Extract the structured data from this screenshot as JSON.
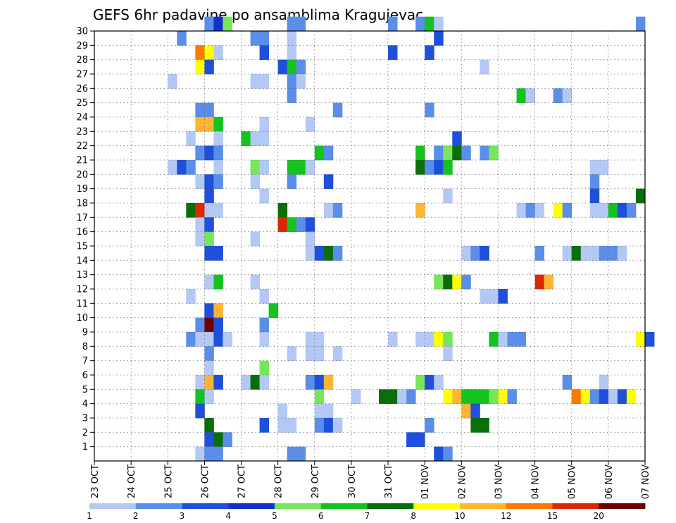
{
  "chart_data": {
    "type": "heatmap",
    "title": "GEFS 6hr padavine po ansamblima Kragujevac",
    "xlabel": "",
    "ylabel": "",
    "x_ticks": [
      "23 OCT",
      "24 OCT",
      "25 OCT",
      "26 OCT",
      "27 OCT",
      "28 OCT",
      "29 OCT",
      "30 OCT",
      "31 OCT",
      "01 NOV",
      "02 NOV",
      "03 NOV",
      "04 NOV",
      "05 NOV",
      "06 NOV",
      "07 NOV"
    ],
    "y_ticks": [
      "1",
      "2",
      "3",
      "4",
      "5",
      "6",
      "7",
      "8",
      "9",
      "10",
      "11",
      "12",
      "13",
      "14",
      "15",
      "16",
      "17",
      "18",
      "19",
      "20",
      "21",
      "22",
      "23",
      "24",
      "25",
      "26",
      "27",
      "28",
      "29",
      "30"
    ],
    "x_range_steps": [
      0,
      60
    ],
    "y_range": [
      0,
      30
    ],
    "grid": true,
    "legend": {
      "placement": "bottom",
      "labels": [
        "1",
        "2",
        "3",
        "4",
        "5",
        "6",
        "7",
        "8",
        "10",
        "12",
        "15",
        "20"
      ],
      "colors": [
        "#b4c8f5",
        "#5a8ee8",
        "#1e50dc",
        "#1432c8",
        "#78e65a",
        "#14c31e",
        "#0a6e0a",
        "#ffff00",
        "#ffb432",
        "#ff7800",
        "#dc2800",
        "#6e0000"
      ]
    },
    "cells_note": "each cell: [time step index (6h steps from 23 OCT 00z), member row 1-30, color class 0-11]",
    "cells": [
      [
        12,
        30,
        1
      ],
      [
        13,
        30,
        3
      ],
      [
        14,
        30,
        4
      ],
      [
        21,
        30,
        1
      ],
      [
        22,
        30,
        1
      ],
      [
        32,
        30,
        1
      ],
      [
        35,
        30,
        1
      ],
      [
        36,
        30,
        5
      ],
      [
        37,
        30,
        0
      ],
      [
        59,
        30,
        1
      ],
      [
        9,
        29,
        1
      ],
      [
        17,
        29,
        1
      ],
      [
        18,
        29,
        1
      ],
      [
        21,
        29,
        0
      ],
      [
        37,
        29,
        2
      ],
      [
        11,
        28,
        9
      ],
      [
        12,
        28,
        7
      ],
      [
        13,
        28,
        0
      ],
      [
        18,
        28,
        2
      ],
      [
        21,
        28,
        0
      ],
      [
        32,
        28,
        2
      ],
      [
        36,
        28,
        2
      ],
      [
        11,
        27,
        7
      ],
      [
        12,
        27,
        2
      ],
      [
        20,
        27,
        2
      ],
      [
        21,
        27,
        5
      ],
      [
        22,
        27,
        1
      ],
      [
        42,
        27,
        0
      ],
      [
        8,
        26,
        0
      ],
      [
        17,
        26,
        0
      ],
      [
        18,
        26,
        0
      ],
      [
        21,
        26,
        1
      ],
      [
        22,
        26,
        0
      ],
      [
        21,
        25,
        1
      ],
      [
        46,
        25,
        5
      ],
      [
        47,
        25,
        0
      ],
      [
        50,
        25,
        1
      ],
      [
        51,
        25,
        0
      ],
      [
        11,
        24,
        1
      ],
      [
        12,
        24,
        1
      ],
      [
        26,
        24,
        1
      ],
      [
        36,
        24,
        1
      ],
      [
        11,
        23,
        8
      ],
      [
        12,
        23,
        8
      ],
      [
        13,
        23,
        5
      ],
      [
        18,
        23,
        0
      ],
      [
        23,
        23,
        0
      ],
      [
        10,
        22,
        0
      ],
      [
        13,
        22,
        0
      ],
      [
        16,
        22,
        5
      ],
      [
        17,
        22,
        0
      ],
      [
        18,
        22,
        0
      ],
      [
        39,
        22,
        2
      ],
      [
        11,
        21,
        1
      ],
      [
        12,
        21,
        2
      ],
      [
        13,
        21,
        1
      ],
      [
        24,
        21,
        5
      ],
      [
        25,
        21,
        1
      ],
      [
        35,
        21,
        5
      ],
      [
        37,
        21,
        1
      ],
      [
        38,
        21,
        4
      ],
      [
        39,
        21,
        6
      ],
      [
        40,
        21,
        1
      ],
      [
        42,
        21,
        1
      ],
      [
        43,
        21,
        4
      ],
      [
        8,
        20,
        0
      ],
      [
        9,
        20,
        2
      ],
      [
        10,
        20,
        1
      ],
      [
        13,
        20,
        0
      ],
      [
        17,
        20,
        4
      ],
      [
        18,
        20,
        0
      ],
      [
        21,
        20,
        5
      ],
      [
        22,
        20,
        5
      ],
      [
        23,
        20,
        0
      ],
      [
        35,
        20,
        6
      ],
      [
        36,
        20,
        1
      ],
      [
        37,
        20,
        2
      ],
      [
        38,
        20,
        5
      ],
      [
        54,
        20,
        0
      ],
      [
        55,
        20,
        0
      ],
      [
        11,
        19,
        0
      ],
      [
        12,
        19,
        2
      ],
      [
        13,
        19,
        1
      ],
      [
        17,
        19,
        0
      ],
      [
        21,
        19,
        1
      ],
      [
        25,
        19,
        2
      ],
      [
        54,
        19,
        1
      ],
      [
        12,
        18,
        2
      ],
      [
        18,
        18,
        0
      ],
      [
        38,
        18,
        0
      ],
      [
        54,
        18,
        2
      ],
      [
        59,
        18,
        6
      ],
      [
        10,
        17,
        6
      ],
      [
        11,
        17,
        10
      ],
      [
        12,
        17,
        0
      ],
      [
        13,
        17,
        0
      ],
      [
        20,
        17,
        6
      ],
      [
        25,
        17,
        0
      ],
      [
        26,
        17,
        1
      ],
      [
        35,
        17,
        8
      ],
      [
        46,
        17,
        0
      ],
      [
        47,
        17,
        1
      ],
      [
        48,
        17,
        0
      ],
      [
        50,
        17,
        7
      ],
      [
        51,
        17,
        1
      ],
      [
        54,
        17,
        0
      ],
      [
        55,
        17,
        0
      ],
      [
        56,
        17,
        5
      ],
      [
        57,
        17,
        2
      ],
      [
        58,
        17,
        1
      ],
      [
        11,
        16,
        0
      ],
      [
        12,
        16,
        2
      ],
      [
        20,
        16,
        10
      ],
      [
        21,
        16,
        5
      ],
      [
        22,
        16,
        1
      ],
      [
        23,
        16,
        2
      ],
      [
        11,
        15,
        0
      ],
      [
        12,
        15,
        4
      ],
      [
        17,
        15,
        0
      ],
      [
        23,
        15,
        0
      ],
      [
        12,
        14,
        2
      ],
      [
        13,
        14,
        2
      ],
      [
        23,
        14,
        0
      ],
      [
        24,
        14,
        2
      ],
      [
        25,
        14,
        6
      ],
      [
        26,
        14,
        1
      ],
      [
        40,
        14,
        0
      ],
      [
        41,
        14,
        1
      ],
      [
        42,
        14,
        2
      ],
      [
        48,
        14,
        1
      ],
      [
        51,
        14,
        0
      ],
      [
        52,
        14,
        6
      ],
      [
        53,
        14,
        0
      ],
      [
        54,
        14,
        0
      ],
      [
        55,
        14,
        1
      ],
      [
        56,
        14,
        1
      ],
      [
        57,
        14,
        0
      ],
      [
        12,
        12,
        0
      ],
      [
        13,
        12,
        5
      ],
      [
        17,
        12,
        0
      ],
      [
        37,
        12,
        4
      ],
      [
        38,
        12,
        6
      ],
      [
        39,
        12,
        7
      ],
      [
        40,
        12,
        1
      ],
      [
        48,
        12,
        10
      ],
      [
        49,
        12,
        8
      ],
      [
        10,
        11,
        0
      ],
      [
        18,
        11,
        0
      ],
      [
        42,
        11,
        0
      ],
      [
        43,
        11,
        0
      ],
      [
        44,
        11,
        2
      ],
      [
        12,
        10,
        2
      ],
      [
        13,
        10,
        8
      ],
      [
        19,
        10,
        5
      ],
      [
        11,
        9,
        1
      ],
      [
        12,
        9,
        11
      ],
      [
        13,
        9,
        2
      ],
      [
        18,
        9,
        1
      ],
      [
        10,
        8,
        1
      ],
      [
        11,
        8,
        0
      ],
      [
        12,
        8,
        0
      ],
      [
        13,
        8,
        2
      ],
      [
        14,
        8,
        0
      ],
      [
        18,
        8,
        0
      ],
      [
        23,
        8,
        0
      ],
      [
        24,
        8,
        0
      ],
      [
        32,
        8,
        0
      ],
      [
        35,
        8,
        0
      ],
      [
        36,
        8,
        0
      ],
      [
        37,
        8,
        7
      ],
      [
        38,
        8,
        4
      ],
      [
        43,
        8,
        5
      ],
      [
        44,
        8,
        0
      ],
      [
        45,
        8,
        1
      ],
      [
        46,
        8,
        1
      ],
      [
        59,
        8,
        7
      ],
      [
        60,
        8,
        2
      ],
      [
        12,
        7,
        1
      ],
      [
        21,
        7,
        0
      ],
      [
        23,
        7,
        0
      ],
      [
        24,
        7,
        0
      ],
      [
        26,
        7,
        0
      ],
      [
        38,
        7,
        0
      ],
      [
        12,
        6,
        0
      ],
      [
        18,
        6,
        4
      ],
      [
        11,
        5,
        0
      ],
      [
        12,
        5,
        8
      ],
      [
        13,
        5,
        2
      ],
      [
        16,
        5,
        0
      ],
      [
        17,
        5,
        6
      ],
      [
        18,
        5,
        0
      ],
      [
        23,
        5,
        1
      ],
      [
        24,
        5,
        2
      ],
      [
        25,
        5,
        8
      ],
      [
        35,
        5,
        4
      ],
      [
        36,
        5,
        2
      ],
      [
        37,
        5,
        0
      ],
      [
        51,
        5,
        1
      ],
      [
        55,
        5,
        0
      ],
      [
        11,
        4,
        5
      ],
      [
        12,
        4,
        0
      ],
      [
        24,
        4,
        4
      ],
      [
        28,
        4,
        0
      ],
      [
        31,
        4,
        6
      ],
      [
        32,
        4,
        6
      ],
      [
        33,
        4,
        0
      ],
      [
        34,
        4,
        1
      ],
      [
        38,
        4,
        7
      ],
      [
        39,
        4,
        8
      ],
      [
        40,
        4,
        5
      ],
      [
        41,
        4,
        5
      ],
      [
        42,
        4,
        5
      ],
      [
        43,
        4,
        4
      ],
      [
        44,
        4,
        7
      ],
      [
        45,
        4,
        1
      ],
      [
        52,
        4,
        9
      ],
      [
        53,
        4,
        7
      ],
      [
        54,
        4,
        1
      ],
      [
        55,
        4,
        2
      ],
      [
        56,
        4,
        0
      ],
      [
        57,
        4,
        2
      ],
      [
        58,
        4,
        7
      ],
      [
        11,
        3,
        2
      ],
      [
        20,
        3,
        0
      ],
      [
        24,
        3,
        0
      ],
      [
        25,
        3,
        0
      ],
      [
        40,
        3,
        8
      ],
      [
        41,
        3,
        2
      ],
      [
        12,
        2,
        6
      ],
      [
        18,
        2,
        2
      ],
      [
        20,
        2,
        0
      ],
      [
        21,
        2,
        0
      ],
      [
        24,
        2,
        1
      ],
      [
        25,
        2,
        2
      ],
      [
        26,
        2,
        0
      ],
      [
        36,
        2,
        1
      ],
      [
        41,
        2,
        6
      ],
      [
        42,
        2,
        6
      ],
      [
        12,
        1,
        2
      ],
      [
        13,
        1,
        6
      ],
      [
        14,
        1,
        1
      ],
      [
        34,
        1,
        2
      ],
      [
        35,
        1,
        2
      ],
      [
        11,
        0,
        0
      ],
      [
        12,
        0,
        1
      ],
      [
        13,
        0,
        1
      ],
      [
        21,
        0,
        1
      ],
      [
        22,
        0,
        1
      ],
      [
        37,
        0,
        2
      ],
      [
        38,
        0,
        1
      ]
    ]
  }
}
